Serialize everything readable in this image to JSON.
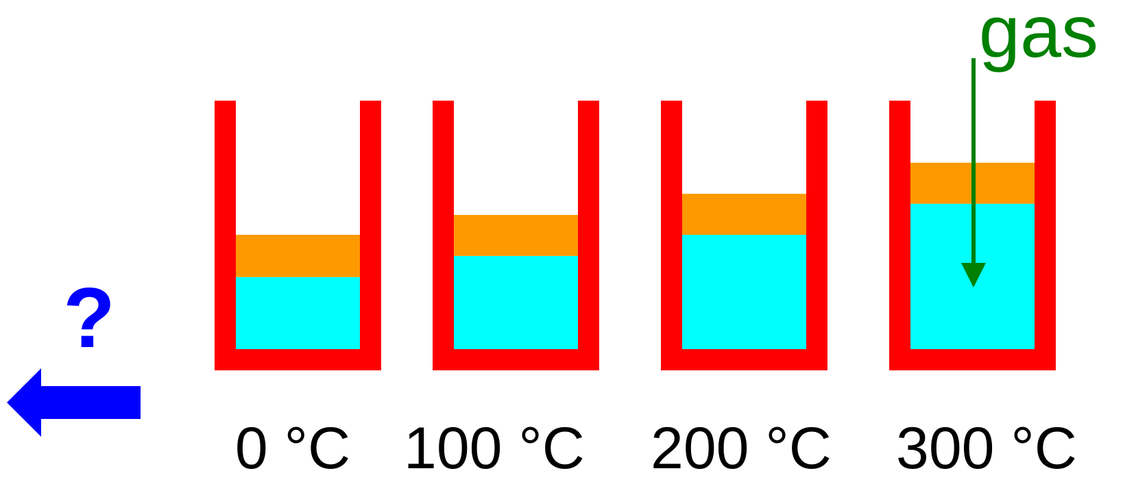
{
  "colors": {
    "container": "#ff0000",
    "layer_top": "#ff9900",
    "layer_bottom": "#00ffff",
    "gas_arrow": "#008000",
    "direction_arrow": "#0000ff",
    "question_mark": "#0000ff",
    "labels": "#000000"
  },
  "containers": [
    {
      "label": "0 °C",
      "bottom_layer_level": 0.29,
      "top_layer_level": 0.46
    },
    {
      "label": "100 °C",
      "bottom_layer_level": 0.375,
      "top_layer_level": 0.54
    },
    {
      "label": "200 °C",
      "bottom_layer_level": 0.46,
      "top_layer_level": 0.625
    },
    {
      "label": "300 °C",
      "bottom_layer_level": 0.585,
      "top_layer_level": 0.75
    }
  ],
  "gas": {
    "label": "gas"
  },
  "question": {
    "label": "?"
  },
  "direction_arrow": {
    "icon": "left-arrow-icon"
  }
}
